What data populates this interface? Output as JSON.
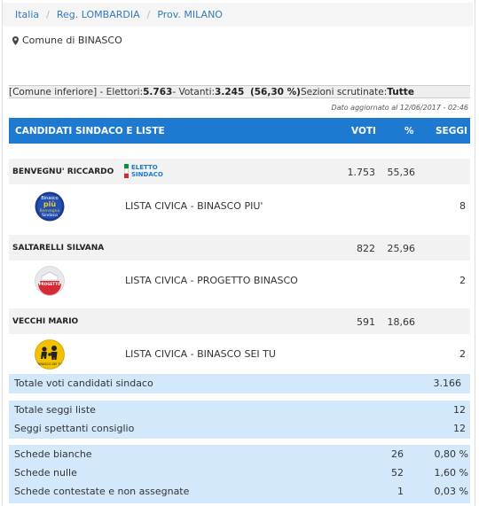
{
  "breadcrumb": [
    "Italia",
    "Reg. LOMBARDIA",
    "Prov. MILANO"
  ],
  "comune": "Comune di BINASCO",
  "summary": {
    "prefix": "[Comune inferiore] - Elettori: ",
    "elettori": "5.763",
    "votanti_label": " - Votanti: ",
    "votanti": "3.245",
    "percent": "(56,30 %)",
    "sezioni_label": " Sezioni scrutinate: ",
    "sezioni": "Tutte"
  },
  "updated": "Dato aggiornato al 12/06/2017 - 02:46",
  "header": {
    "title": "CANDIDATI SINDACO E LISTE",
    "voti": "VOTI",
    "perc": "%",
    "seggi": "SEGGI"
  },
  "eletto_label": [
    "ELETTO",
    "SINDACO"
  ],
  "candidates": [
    {
      "name": "BENVEGNU' RICCARDO",
      "voti": "1.753",
      "perc": "55,36",
      "eletto": true,
      "list": {
        "name": "LISTA CIVICA - BINASCO PIU'",
        "seggi": "8",
        "logo": "binasco-piu-logo"
      }
    },
    {
      "name": "SALTARELLI SILVANA",
      "voti": "822",
      "perc": "25,96",
      "eletto": false,
      "list": {
        "name": "LISTA CIVICA - PROGETTO BINASCO",
        "seggi": "2",
        "logo": "progetto-binasco-logo"
      }
    },
    {
      "name": "VECCHI MARIO",
      "voti": "591",
      "perc": "18,66",
      "eletto": false,
      "list": {
        "name": "LISTA CIVICA - BINASCO SEI TU",
        "seggi": "2",
        "logo": "binasco-sei-tu-logo"
      }
    }
  ],
  "totale_voti": {
    "label": "Totale voti candidati sindaco",
    "value": "3.166"
  },
  "seggi": [
    {
      "label": "Totale seggi liste",
      "value": "12"
    },
    {
      "label": "Seggi spettanti consiglio",
      "value": "12"
    }
  ],
  "schede": [
    {
      "label": "Schede bianche",
      "value": "26",
      "perc": "0,80 %"
    },
    {
      "label": "Schede nulle",
      "value": "52",
      "perc": "1,60 %"
    },
    {
      "label": "Schede contestate e non assegnate",
      "value": "1",
      "perc": "0,03 %"
    }
  ],
  "colors": {
    "header": "#1e7ad1",
    "totals_bg": "#d4e8fb",
    "candidate_bg": "#f2f2f2"
  }
}
